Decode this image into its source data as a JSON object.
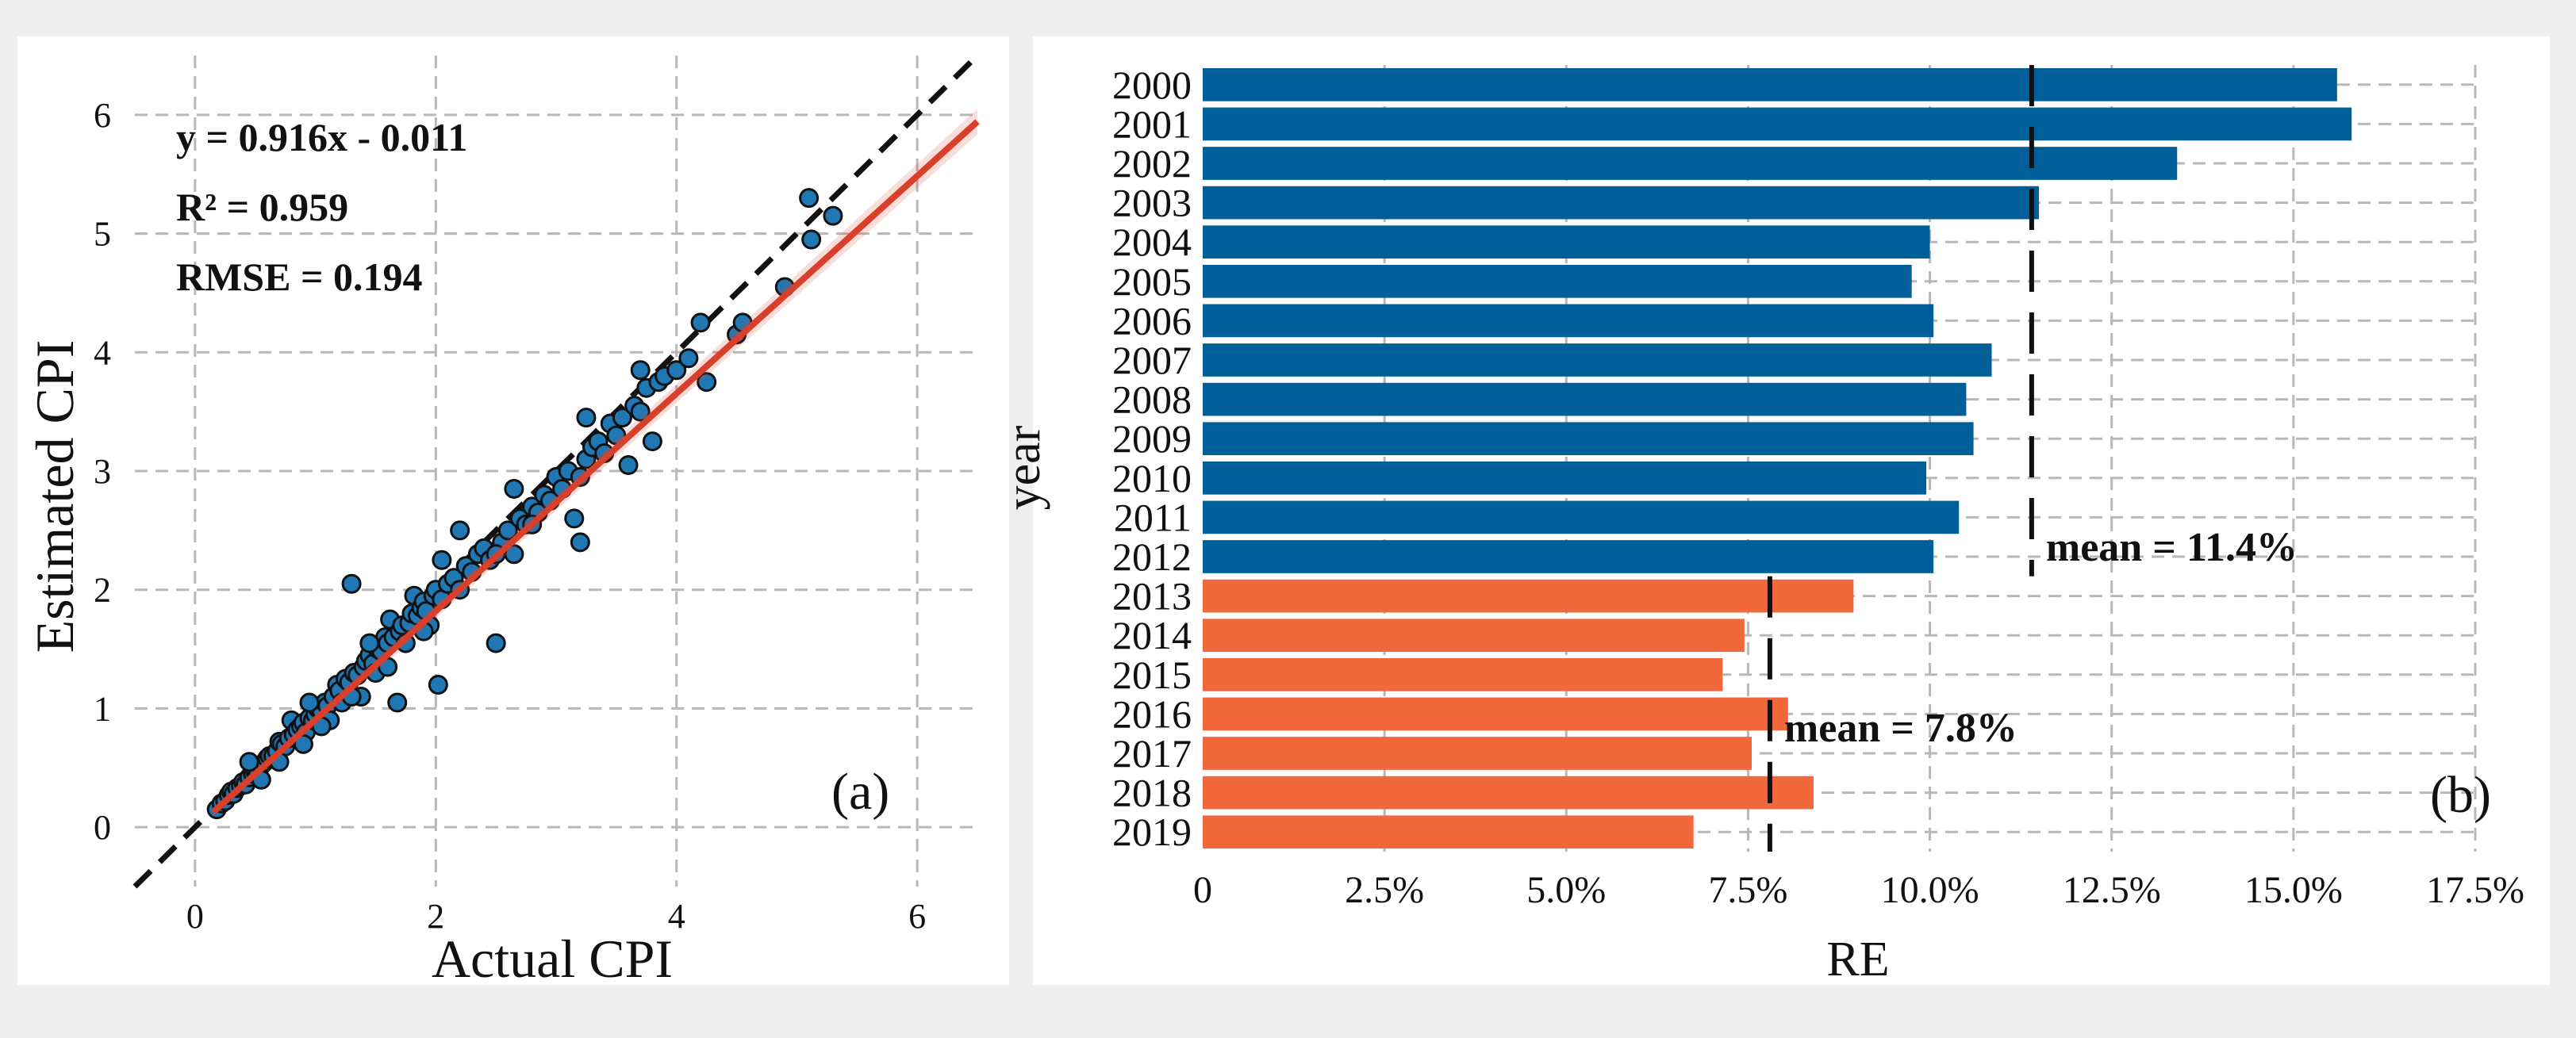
{
  "chart_data": [
    {
      "panel": "(a)",
      "type": "scatter",
      "xlabel": "Actual CPI",
      "ylabel": "Estimated CPI",
      "xlim": [
        -0.5,
        6.5
      ],
      "ylim": [
        -0.5,
        6.5
      ],
      "xticks": [
        "0",
        "2",
        "4",
        "6"
      ],
      "yticks": [
        "0",
        "1",
        "2",
        "3",
        "4",
        "5",
        "6"
      ],
      "xtick_values": [
        0,
        2,
        4,
        6
      ],
      "ytick_values": [
        0,
        1,
        2,
        3,
        4,
        5,
        6
      ],
      "grid": true,
      "annotations": {
        "equation": "y = 0.916x - 0.011",
        "r2": "R² = 0.959",
        "rmse": "RMSE = 0.194"
      },
      "fit": {
        "slope": 0.916,
        "intercept": -0.011,
        "color": "#d9402b"
      },
      "identity_line": {
        "slope": 1,
        "intercept": 0,
        "style": "dashed",
        "color": "#111111"
      },
      "point_color": "#1f77b4",
      "points": [
        [
          0.18,
          0.15
        ],
        [
          0.22,
          0.2
        ],
        [
          0.25,
          0.22
        ],
        [
          0.28,
          0.27
        ],
        [
          0.3,
          0.3
        ],
        [
          0.32,
          0.28
        ],
        [
          0.35,
          0.33
        ],
        [
          0.38,
          0.35
        ],
        [
          0.4,
          0.38
        ],
        [
          0.42,
          0.36
        ],
        [
          0.45,
          0.42
        ],
        [
          0.48,
          0.45
        ],
        [
          0.5,
          0.47
        ],
        [
          0.52,
          0.44
        ],
        [
          0.55,
          0.52
        ],
        [
          0.58,
          0.55
        ],
        [
          0.6,
          0.58
        ],
        [
          0.62,
          0.6
        ],
        [
          0.65,
          0.6
        ],
        [
          0.68,
          0.64
        ],
        [
          0.7,
          0.72
        ],
        [
          0.72,
          0.7
        ],
        [
          0.75,
          0.68
        ],
        [
          0.78,
          0.75
        ],
        [
          0.8,
          0.9
        ],
        [
          0.82,
          0.78
        ],
        [
          0.85,
          0.82
        ],
        [
          0.88,
          0.85
        ],
        [
          0.9,
          0.88
        ],
        [
          0.92,
          0.8
        ],
        [
          0.95,
          0.92
        ],
        [
          0.98,
          0.9
        ],
        [
          1.0,
          0.95
        ],
        [
          1.02,
          1.0
        ],
        [
          1.05,
          0.98
        ],
        [
          1.08,
          1.05
        ],
        [
          1.1,
          1.02
        ],
        [
          1.12,
          0.9
        ],
        [
          1.15,
          1.1
        ],
        [
          1.18,
          1.2
        ],
        [
          1.2,
          1.15
        ],
        [
          1.22,
          1.05
        ],
        [
          1.25,
          1.25
        ],
        [
          1.28,
          1.22
        ],
        [
          1.3,
          2.05
        ],
        [
          1.32,
          1.3
        ],
        [
          1.35,
          1.28
        ],
        [
          1.38,
          1.1
        ],
        [
          1.4,
          1.35
        ],
        [
          1.42,
          1.4
        ],
        [
          1.45,
          1.45
        ],
        [
          1.48,
          1.38
        ],
        [
          1.5,
          1.3
        ],
        [
          1.52,
          1.5
        ],
        [
          1.55,
          1.48
        ],
        [
          1.58,
          1.6
        ],
        [
          1.6,
          1.55
        ],
        [
          1.62,
          1.75
        ],
        [
          1.65,
          1.6
        ],
        [
          1.68,
          1.05
        ],
        [
          1.7,
          1.65
        ],
        [
          1.72,
          1.7
        ],
        [
          1.75,
          1.55
        ],
        [
          1.78,
          1.72
        ],
        [
          1.8,
          1.8
        ],
        [
          1.82,
          1.95
        ],
        [
          1.85,
          1.78
        ],
        [
          1.88,
          1.85
        ],
        [
          1.9,
          1.9
        ],
        [
          1.92,
          1.82
        ],
        [
          1.95,
          1.7
        ],
        [
          1.98,
          1.95
        ],
        [
          2.0,
          2.0
        ],
        [
          2.02,
          1.2
        ],
        [
          2.05,
          1.92
        ],
        [
          2.1,
          2.05
        ],
        [
          2.15,
          2.1
        ],
        [
          2.2,
          2.5
        ],
        [
          2.25,
          2.2
        ],
        [
          2.3,
          2.15
        ],
        [
          2.35,
          2.3
        ],
        [
          2.4,
          2.35
        ],
        [
          2.45,
          2.25
        ],
        [
          2.5,
          1.55
        ],
        [
          2.55,
          2.4
        ],
        [
          2.6,
          2.5
        ],
        [
          2.65,
          2.3
        ],
        [
          2.7,
          2.6
        ],
        [
          2.75,
          2.55
        ],
        [
          2.8,
          2.7
        ],
        [
          2.85,
          2.65
        ],
        [
          2.9,
          2.8
        ],
        [
          2.95,
          2.75
        ],
        [
          3.0,
          2.95
        ],
        [
          3.05,
          2.85
        ],
        [
          3.1,
          3.0
        ],
        [
          3.15,
          2.6
        ],
        [
          3.2,
          2.4
        ],
        [
          3.25,
          3.1
        ],
        [
          3.3,
          3.2
        ],
        [
          3.35,
          3.25
        ],
        [
          3.4,
          3.15
        ],
        [
          3.45,
          3.4
        ],
        [
          3.5,
          3.3
        ],
        [
          3.55,
          3.45
        ],
        [
          3.6,
          3.05
        ],
        [
          3.65,
          3.55
        ],
        [
          3.7,
          3.5
        ],
        [
          3.75,
          3.7
        ],
        [
          3.8,
          3.25
        ],
        [
          3.85,
          3.75
        ],
        [
          3.9,
          3.8
        ],
        [
          4.0,
          3.85
        ],
        [
          4.1,
          3.95
        ],
        [
          4.2,
          4.25
        ],
        [
          4.25,
          3.75
        ],
        [
          4.5,
          4.15
        ],
        [
          4.55,
          4.25
        ],
        [
          4.9,
          4.55
        ],
        [
          5.1,
          5.3
        ],
        [
          5.12,
          4.95
        ],
        [
          5.3,
          5.15
        ],
        [
          0.55,
          0.4
        ],
        [
          0.7,
          0.55
        ],
        [
          0.9,
          0.7
        ],
        [
          1.05,
          0.85
        ],
        [
          1.3,
          1.1
        ],
        [
          1.6,
          1.35
        ],
        [
          1.9,
          1.65
        ],
        [
          2.2,
          2.0
        ],
        [
          2.5,
          2.3
        ],
        [
          2.8,
          2.55
        ],
        [
          3.2,
          2.95
        ],
        [
          0.45,
          0.55
        ],
        [
          0.95,
          1.05
        ],
        [
          1.45,
          1.55
        ],
        [
          2.05,
          2.25
        ],
        [
          2.65,
          2.85
        ],
        [
          3.25,
          3.45
        ],
        [
          3.7,
          3.85
        ]
      ]
    },
    {
      "panel": "(b)",
      "type": "bar",
      "orientation": "horizontal",
      "xlabel": "RE",
      "ylabel": "year",
      "xlim": [
        0,
        17.5
      ],
      "xticks": [
        "0",
        "2.5%",
        "5.0%",
        "7.5%",
        "10.0%",
        "12.5%",
        "15.0%",
        "17.5%"
      ],
      "xtick_values": [
        0,
        2.5,
        5.0,
        7.5,
        10.0,
        12.5,
        15.0,
        17.5
      ],
      "grid": true,
      "categories": [
        "2000",
        "2001",
        "2002",
        "2003",
        "2004",
        "2005",
        "2006",
        "2007",
        "2008",
        "2009",
        "2010",
        "2011",
        "2012",
        "2013",
        "2014",
        "2015",
        "2016",
        "2017",
        "2018",
        "2019"
      ],
      "values": [
        15.6,
        15.8,
        13.4,
        11.5,
        10.0,
        9.75,
        10.05,
        10.85,
        10.5,
        10.6,
        9.95,
        10.4,
        10.05,
        8.95,
        7.45,
        7.15,
        8.05,
        7.55,
        8.4,
        6.75
      ],
      "groups": [
        0,
        0,
        0,
        0,
        0,
        0,
        0,
        0,
        0,
        0,
        0,
        0,
        0,
        1,
        1,
        1,
        1,
        1,
        1,
        1
      ],
      "group_colors": [
        "#005f99",
        "#f2683d"
      ],
      "means": [
        {
          "value": 11.4,
          "label": "mean = 11.4%",
          "group": 0
        },
        {
          "value": 7.8,
          "label": "mean = 7.8%",
          "group": 1
        }
      ]
    }
  ]
}
